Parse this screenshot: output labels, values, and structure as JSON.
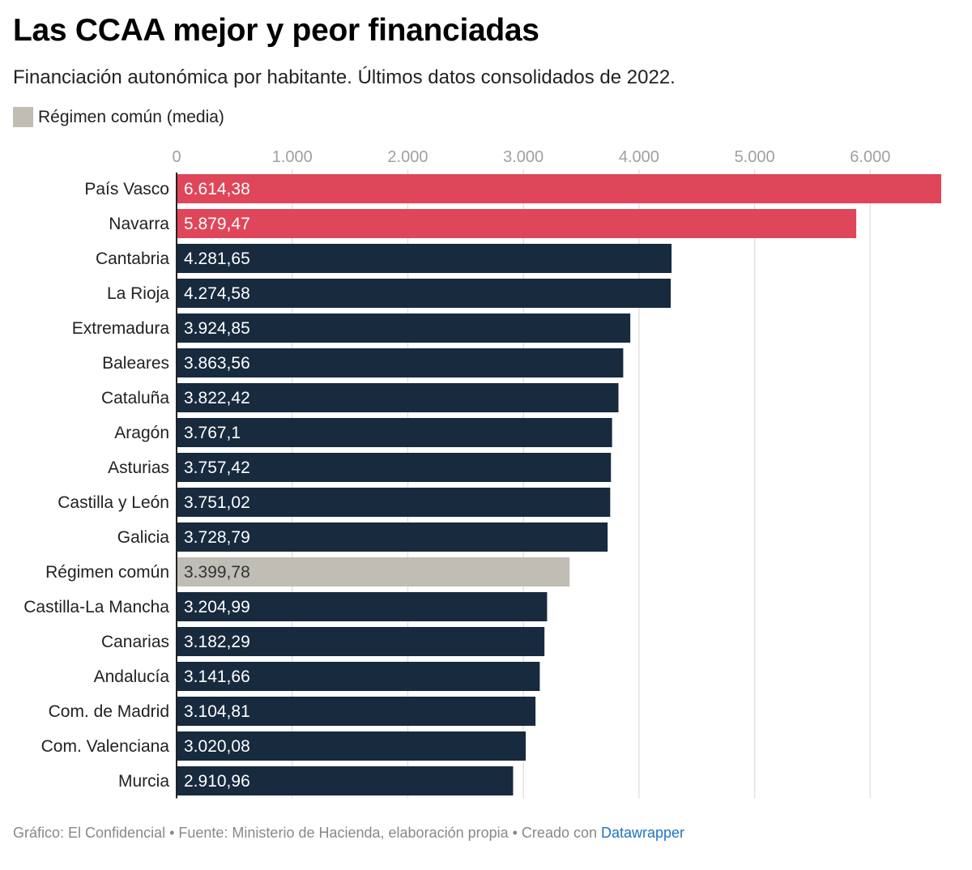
{
  "title": "Las CCAA mejor y peor financiadas",
  "subtitle": "Financiación autonómica por habitante. Últimos datos consolidados de 2022.",
  "legend": {
    "label": "Régimen común (media)",
    "color": "#c0bdb5"
  },
  "footer": {
    "text": "Gráfico: El Confidencial • Fuente: Ministerio de Hacienda, elaboración propia • Creado con ",
    "link": "Datawrapper"
  },
  "colors": {
    "top": "#df4659",
    "regular": "#172a3e",
    "average": "#c0bdb5",
    "link": "#1d75c0"
  },
  "chart_data": {
    "type": "bar",
    "orientation": "horizontal",
    "xlim": [
      0,
      6614.38
    ],
    "ticks": [
      0,
      1000,
      2000,
      3000,
      4000,
      5000,
      6000
    ],
    "tick_labels": [
      "0",
      "1.000",
      "2.000",
      "3.000",
      "4.000",
      "5.000",
      "6.000"
    ],
    "grid": true,
    "categories": [
      "País Vasco",
      "Navarra",
      "Cantabria",
      "La Rioja",
      "Extremadura",
      "Baleares",
      "Cataluña",
      "Aragón",
      "Asturias",
      "Castilla y León",
      "Galicia",
      "Régimen común",
      "Castilla-La Mancha",
      "Canarias",
      "Andalucía",
      "Com. de Madrid",
      "Com. Valenciana",
      "Murcia"
    ],
    "values": [
      6614.38,
      5879.47,
      4281.65,
      4274.58,
      3924.85,
      3863.56,
      3822.42,
      3767.1,
      3757.42,
      3751.02,
      3728.79,
      3399.78,
      3204.99,
      3182.29,
      3141.66,
      3104.81,
      3020.08,
      2910.96
    ],
    "value_labels": [
      "6.614,38",
      "5.879,47",
      "4.281,65",
      "4.274,58",
      "3.924,85",
      "3.863,56",
      "3.822,42",
      "3.767,1",
      "3.757,42",
      "3.751,02",
      "3.728,79",
      "3.399,78",
      "3.204,99",
      "3.182,29",
      "3.141,66",
      "3.104,81",
      "3.020,08",
      "2.910,96"
    ],
    "bar_group": [
      "top",
      "top",
      "regular",
      "regular",
      "regular",
      "regular",
      "regular",
      "regular",
      "regular",
      "regular",
      "regular",
      "average",
      "regular",
      "regular",
      "regular",
      "regular",
      "regular",
      "regular"
    ]
  }
}
